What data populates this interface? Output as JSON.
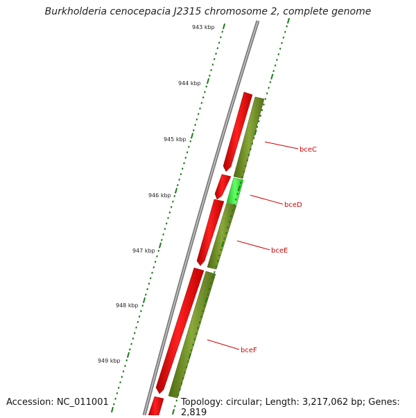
{
  "title": "Burkholderia cenocepacia J2315 chromosome 2, complete genome",
  "accession": "Accession: NC_011001",
  "summary": "Topology: circular; Length: 3,217,062 bp; Genes: 2,819",
  "colors": {
    "backbone": "#7a7a7a",
    "forward_gene": "#ff1a1a",
    "reverse_gene": "#6f8f1f",
    "highlight_gene": "#33dd33",
    "tick": "#1a7a1a",
    "label": "#cc0000"
  },
  "kbp_ticks": [
    {
      "label": "943 kbp"
    },
    {
      "label": "944 kbp"
    },
    {
      "label": "945 kbp"
    },
    {
      "label": "946 kbp"
    },
    {
      "label": "947 kbp"
    },
    {
      "label": "948 kbp"
    },
    {
      "label": "949 kbp"
    }
  ],
  "gene_labels": [
    {
      "label": "bceC"
    },
    {
      "label": "bceD"
    },
    {
      "label": "bceE"
    },
    {
      "label": "bceF"
    }
  ]
}
